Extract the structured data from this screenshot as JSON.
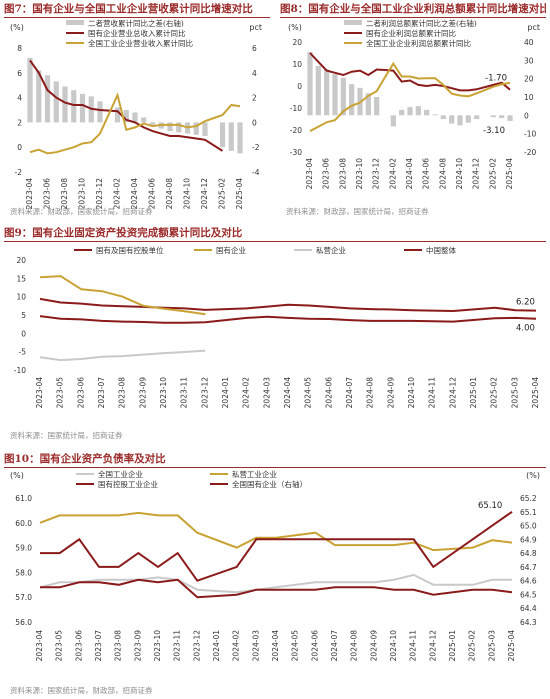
{
  "colors": {
    "darkred": "#8b1a1a",
    "gold": "#c8a233",
    "grey": "#c9c9c9",
    "title": "#9b2a2a"
  },
  "fig7": {
    "title": "图7：国有企业与全国工业企业营收累计同比增速对比",
    "source": "资料来源：财政部，国家统计局，招商证券",
    "chart_data": {
      "type": "bar+line",
      "x": [
        "2023-04",
        "2023-05",
        "2023-06",
        "2023-07",
        "2023-08",
        "2023-09",
        "2023-10",
        "2023-11",
        "2023-12",
        "2024-01",
        "2024-02",
        "2024-03",
        "2024-04",
        "2024-05",
        "2024-06",
        "2024-07",
        "2024-08",
        "2024-09",
        "2024-10",
        "2024-11",
        "2024-12",
        "2025-01",
        "2025-02",
        "2025-03",
        "2025-04"
      ],
      "x_ticks": [
        "2023-04",
        "2023-06",
        "2023-08",
        "2023-10",
        "2023-12",
        "2024-02",
        "2024-04",
        "2024-06",
        "2024-08",
        "2024-10",
        "2024-12",
        "2025-02",
        "2025-04"
      ],
      "left_unit": "(%)",
      "right_unit": "pct",
      "left_ylim": [
        -2,
        8
      ],
      "left_ticks": [
        "8",
        "6",
        "4",
        "2",
        "0",
        "-2"
      ],
      "right_ylim": [
        -4,
        6
      ],
      "right_ticks": [
        "6",
        "4",
        "2",
        "0",
        "-2",
        "-4"
      ],
      "series": [
        {
          "name": "二者营收累计同比之差(右轴)",
          "type": "bar",
          "axis": "right",
          "values": [
            5.2,
            4.2,
            3.8,
            3.3,
            2.9,
            2.6,
            2.3,
            2.1,
            1.7,
            null,
            1.2,
            1.0,
            0.8,
            0.4,
            -0.2,
            -0.5,
            -0.7,
            -0.8,
            -0.9,
            -1.0,
            -1.1,
            null,
            -2.0,
            -2.3,
            -2.5
          ]
        },
        {
          "name": "国有企业营业总收入累计同比",
          "type": "line",
          "axis": "left",
          "values": [
            7.0,
            6.0,
            4.6,
            4.0,
            3.6,
            3.4,
            3.4,
            3.1,
            3.0,
            null,
            2.9,
            2.2,
            2.0,
            1.6,
            1.3,
            1.1,
            0.9,
            0.9,
            0.8,
            0.7,
            0.6,
            null,
            -0.3,
            null,
            null
          ]
        },
        {
          "name": "全国工业企业营业收入累计同比",
          "type": "line",
          "axis": "left",
          "values": [
            -0.4,
            -0.2,
            -0.5,
            -0.4,
            -0.2,
            0.0,
            0.3,
            0.4,
            1.1,
            null,
            4.2,
            1.4,
            1.6,
            1.9,
            1.7,
            1.8,
            1.8,
            1.8,
            1.6,
            1.7,
            2.1,
            null,
            2.6,
            3.4,
            3.3
          ]
        }
      ]
    }
  },
  "fig8": {
    "title": "图8：国有企业与全国工业企业利润总额累计同比增速对比",
    "source": "资料来源：财政部，国家统计局，招商证券",
    "chart_data": {
      "type": "bar+line",
      "x": [
        "2023-04",
        "2023-05",
        "2023-06",
        "2023-07",
        "2023-08",
        "2023-09",
        "2023-10",
        "2023-11",
        "2023-12",
        "2024-01",
        "2024-02",
        "2024-03",
        "2024-04",
        "2024-05",
        "2024-06",
        "2024-07",
        "2024-08",
        "2024-09",
        "2024-10",
        "2024-11",
        "2024-12",
        "2025-01",
        "2025-02",
        "2025-03",
        "2025-04"
      ],
      "x_ticks": [
        "2023-04",
        "2023-06",
        "2023-08",
        "2023-10",
        "2023-12",
        "2024-02",
        "2024-04",
        "2024-06",
        "2024-08",
        "2024-10",
        "2024-12",
        "2025-02",
        "2025-04"
      ],
      "left_unit": "(%)",
      "right_unit": "pct",
      "left_ylim": [
        -30,
        20
      ],
      "left_ticks": [
        "20",
        "10",
        "0",
        "-10",
        "-20",
        "-30"
      ],
      "right_ylim": [
        -20,
        40
      ],
      "right_ticks": [
        "40",
        "30",
        "20",
        "10",
        "0",
        "-10",
        "-20"
      ],
      "annotations": [
        {
          "text": "-1.70",
          "x": "2025-04"
        },
        {
          "text": "-3.10",
          "x": "2025-04"
        }
      ],
      "series": [
        {
          "name": "二者利润总额累计同比之差(右轴)",
          "type": "bar",
          "axis": "right",
          "values": [
            34.5,
            27.0,
            25.0,
            22.5,
            20.5,
            17.0,
            15.0,
            12.0,
            10.0,
            null,
            -6.0,
            3.0,
            4.5,
            5.0,
            3.0,
            0.5,
            -2.0,
            -4.5,
            -5.5,
            -4.0,
            -2.0,
            null,
            -1.0,
            -1.5,
            -3.1
          ]
        },
        {
          "name": "国有企业利润总额累计同比",
          "type": "line",
          "axis": "left",
          "values": [
            15.0,
            11.0,
            7.0,
            6.0,
            5.0,
            6.5,
            7.0,
            5.0,
            7.5,
            null,
            7.0,
            2.0,
            2.5,
            0.5,
            0.0,
            0.5,
            0.0,
            -1.0,
            -2.0,
            -2.0,
            -1.5,
            null,
            0.5,
            1.5,
            -1.7
          ]
        },
        {
          "name": "全国工业企业利润总额累计同比",
          "type": "line",
          "axis": "left",
          "values": [
            -20.5,
            -18.5,
            -16.5,
            -15.5,
            -11.5,
            -9.0,
            -7.5,
            -4.5,
            -2.3,
            null,
            10.2,
            4.3,
            4.3,
            3.4,
            3.5,
            3.6,
            0.5,
            -3.5,
            -4.3,
            -4.7,
            -3.3,
            null,
            -0.3,
            0.8,
            1.4
          ]
        }
      ]
    }
  },
  "fig9": {
    "title": "图9：国有企业固定资产投资完成额累计同比及对比",
    "source": "资料来源：国家统计局，招商证券",
    "chart_data": {
      "type": "line",
      "x": [
        "2023-04",
        "2023-05",
        "2023-06",
        "2023-07",
        "2023-08",
        "2023-09",
        "2023-10",
        "2023-11",
        "2023-12",
        "2024-01",
        "2024-02",
        "2024-03",
        "2024-04",
        "2024-05",
        "2024-06",
        "2024-07",
        "2024-08",
        "2024-09",
        "2024-10",
        "2024-11",
        "2024-12",
        "2025-01",
        "2025-02",
        "2025-03",
        "2025-04"
      ],
      "ylim": [
        -10,
        20
      ],
      "y_ticks": [
        "20",
        "15",
        "10",
        "5",
        "0",
        "-5",
        "-10"
      ],
      "annotations": [
        {
          "text": "6.20",
          "x": "2025-04"
        },
        {
          "text": "4.00",
          "x": "2025-04"
        }
      ],
      "series": [
        {
          "name": "国有及国有控股单位",
          "values": [
            9.4,
            8.4,
            8.1,
            7.6,
            7.4,
            7.2,
            7.0,
            6.8,
            6.4,
            null,
            6.8,
            7.3,
            7.8,
            7.6,
            7.2,
            6.8,
            6.6,
            6.5,
            6.3,
            6.2,
            6.1,
            null,
            7.0,
            6.3,
            6.2
          ]
        },
        {
          "name": "国有企业",
          "values": [
            15.3,
            15.6,
            12.0,
            11.5,
            10.0,
            7.5,
            6.7,
            6.0,
            5.2,
            null,
            null,
            null,
            null,
            null,
            null,
            null,
            null,
            null,
            null,
            null,
            null,
            null,
            null,
            null,
            null
          ]
        },
        {
          "name": "私营企业",
          "values": [
            -6.5,
            -7.3,
            -7.0,
            -6.4,
            -6.2,
            -5.8,
            -5.4,
            -5.1,
            -4.7,
            null,
            null,
            null,
            null,
            null,
            null,
            null,
            null,
            null,
            null,
            null,
            null,
            null,
            null,
            null,
            null
          ]
        },
        {
          "name": "中国整体",
          "values": [
            4.7,
            4.0,
            3.8,
            3.4,
            3.2,
            3.1,
            2.9,
            2.9,
            3.0,
            null,
            4.2,
            4.5,
            4.2,
            4.0,
            3.9,
            3.6,
            3.4,
            3.4,
            3.4,
            3.3,
            3.2,
            null,
            4.1,
            4.2,
            4.0
          ]
        }
      ]
    }
  },
  "fig10": {
    "title": "图10：国有企业资产负债率及对比",
    "source": "资料来源：国家统计局，财政部，招商证券",
    "chart_data": {
      "type": "line",
      "x": [
        "2023-04",
        "2023-05",
        "2023-06",
        "2023-07",
        "2023-08",
        "2023-09",
        "2023-10",
        "2023-11",
        "2023-12",
        "2024-01",
        "2024-02",
        "2024-03",
        "2024-04",
        "2024-05",
        "2024-06",
        "2024-07",
        "2024-08",
        "2024-09",
        "2024-10",
        "2024-11",
        "2024-12",
        "2025-01",
        "2025-02",
        "2025-03",
        "2025-04"
      ],
      "left_unit": "(%)",
      "right_unit": "(%)",
      "left_ylim": [
        56.0,
        61.0
      ],
      "left_ticks": [
        "61.0",
        "60.0",
        "59.0",
        "58.0",
        "57.0",
        "56.0"
      ],
      "right_ylim": [
        64.3,
        65.2
      ],
      "right_ticks": [
        "65.2",
        "65.1",
        "65.0",
        "64.9",
        "64.8",
        "64.7",
        "64.6",
        "64.5",
        "64.4",
        "64.3"
      ],
      "annotations": [
        {
          "text": "65.10",
          "x": "2025-04"
        }
      ],
      "series": [
        {
          "name": "全国工业企业",
          "axis": "left",
          "values": [
            57.4,
            57.6,
            57.6,
            57.7,
            57.7,
            57.7,
            57.8,
            57.7,
            57.3,
            null,
            57.2,
            57.3,
            57.4,
            57.5,
            57.6,
            57.6,
            57.6,
            57.6,
            57.7,
            57.9,
            57.5,
            null,
            57.5,
            57.7,
            57.7
          ]
        },
        {
          "name": "私营工业企业",
          "axis": "left",
          "values": [
            60.0,
            60.3,
            60.3,
            60.3,
            60.3,
            60.4,
            60.3,
            60.3,
            59.6,
            null,
            59.0,
            59.4,
            59.4,
            59.5,
            59.6,
            59.1,
            59.1,
            59.1,
            59.1,
            59.2,
            58.9,
            null,
            59.0,
            59.3,
            59.2
          ]
        },
        {
          "name": "国有控股工业企业",
          "axis": "left",
          "values": [
            57.4,
            57.4,
            57.6,
            57.6,
            57.5,
            57.7,
            57.6,
            57.7,
            57.0,
            null,
            57.1,
            57.3,
            57.3,
            57.3,
            57.3,
            57.4,
            57.4,
            57.4,
            57.3,
            57.3,
            57.1,
            null,
            57.3,
            57.3,
            57.2
          ]
        },
        {
          "name": "全国国有企业（右轴）",
          "axis": "right",
          "values": [
            64.8,
            64.8,
            64.9,
            64.7,
            64.7,
            64.8,
            64.7,
            64.8,
            64.6,
            null,
            64.7,
            64.9,
            64.9,
            64.9,
            64.9,
            64.9,
            64.9,
            64.9,
            64.9,
            64.9,
            64.7,
            null,
            64.9,
            65.0,
            65.1
          ]
        }
      ]
    }
  }
}
